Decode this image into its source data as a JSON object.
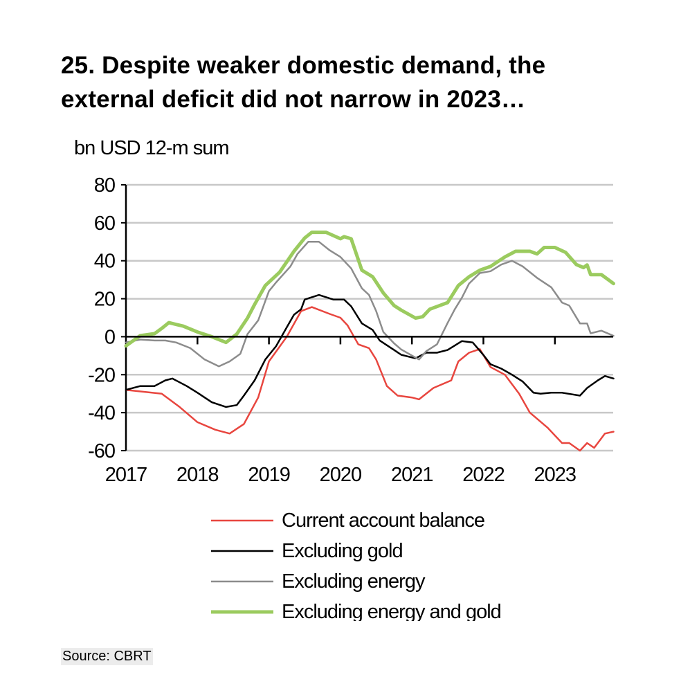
{
  "chart_data": {
    "type": "line",
    "title_lines": [
      "25. Despite weaker domestic demand, the",
      "external deficit did not narrow in 2023…"
    ],
    "ylabel": "bn USD 12-m sum",
    "xlabel": "",
    "ylim": [
      -60,
      80
    ],
    "yticks": [
      80,
      60,
      40,
      20,
      0,
      -20,
      -40,
      -60
    ],
    "ytick_labels": [
      "80",
      "60",
      "40",
      "20",
      "0",
      "-20",
      "-40",
      "-60"
    ],
    "xlim": [
      2017.0,
      2023.82
    ],
    "xticks": [
      2017,
      2018,
      2019,
      2020,
      2021,
      2022,
      2023
    ],
    "xtick_labels": [
      "2017",
      "2018",
      "2019",
      "2020",
      "2021",
      "2022",
      "2023"
    ],
    "grid": true,
    "legend_position": "bottom",
    "series": [
      {
        "name": "Current account balance",
        "color": "#e8463f",
        "width": 2.5,
        "x": [
          2017.0,
          2017.25,
          2017.5,
          2017.75,
          2018.0,
          2018.25,
          2018.45,
          2018.65,
          2018.85,
          2019.0,
          2019.25,
          2019.45,
          2019.6,
          2019.85,
          2020.0,
          2020.1,
          2020.25,
          2020.4,
          2020.5,
          2020.65,
          2020.8,
          2021.0,
          2021.1,
          2021.3,
          2021.55,
          2021.65,
          2021.8,
          2021.95,
          2022.1,
          2022.3,
          2022.5,
          2022.65,
          2022.9,
          2023.1,
          2023.2,
          2023.35,
          2023.45,
          2023.55,
          2023.7,
          2023.82
        ],
        "y": [
          -28,
          -29,
          -30,
          -37,
          -45,
          -49,
          -51,
          -46,
          -32,
          -13,
          0,
          13.5,
          15.6,
          12,
          10,
          6,
          -4,
          -6,
          -12,
          -26,
          -31,
          -32,
          -33,
          -27,
          -23,
          -13,
          -8.4,
          -6.5,
          -16,
          -20,
          -30,
          -40,
          -48,
          -56,
          -56,
          -60,
          -56,
          -58.5,
          -51,
          -50
        ]
      },
      {
        "name": "Excluding gold",
        "color": "#000000",
        "width": 2.5,
        "x": [
          2017.0,
          2017.2,
          2017.4,
          2017.55,
          2017.65,
          2017.85,
          2018.0,
          2018.2,
          2018.4,
          2018.55,
          2018.65,
          2018.8,
          2018.95,
          2019.1,
          2019.25,
          2019.35,
          2019.45,
          2019.5,
          2019.7,
          2019.9,
          2020.05,
          2020.15,
          2020.3,
          2020.45,
          2020.55,
          2020.75,
          2020.85,
          2021.05,
          2021.2,
          2021.35,
          2021.5,
          2021.7,
          2021.85,
          2022.0,
          2022.1,
          2022.25,
          2022.4,
          2022.55,
          2022.7,
          2022.8,
          2022.95,
          2023.1,
          2023.35,
          2023.45,
          2023.6,
          2023.7,
          2023.82
        ],
        "y": [
          -28,
          -26,
          -26,
          -23,
          -22,
          -26,
          -29.5,
          -34.5,
          -37,
          -36,
          -31,
          -23,
          -12,
          -5,
          5,
          11.6,
          14.5,
          19.6,
          22,
          19.6,
          19.6,
          16,
          7,
          3.6,
          -2,
          -7,
          -9.5,
          -11.4,
          -8.4,
          -8.4,
          -7,
          -2.3,
          -3,
          -9.6,
          -14.5,
          -16.8,
          -20,
          -23.6,
          -29.5,
          -30,
          -29.5,
          -29.5,
          -31,
          -27,
          -23,
          -20.7,
          -22
        ]
      },
      {
        "name": "Excluding energy",
        "color": "#8c8c8c",
        "width": 2.5,
        "x": [
          2017.0,
          2017.2,
          2017.4,
          2017.55,
          2017.7,
          2017.9,
          2018.1,
          2018.3,
          2018.45,
          2018.6,
          2018.7,
          2018.85,
          2019.0,
          2019.1,
          2019.3,
          2019.4,
          2019.55,
          2019.7,
          2019.85,
          2020.0,
          2020.15,
          2020.3,
          2020.4,
          2020.5,
          2020.6,
          2020.75,
          2020.85,
          2021.05,
          2021.1,
          2021.2,
          2021.35,
          2021.5,
          2021.6,
          2021.7,
          2021.8,
          2021.95,
          2022.1,
          2022.25,
          2022.4,
          2022.55,
          2022.75,
          2022.95,
          2023.1,
          2023.2,
          2023.35,
          2023.45,
          2023.5,
          2023.65,
          2023.82
        ],
        "y": [
          -3,
          -1.5,
          -2,
          -2,
          -3,
          -6,
          -12,
          -15.6,
          -13,
          -9,
          1.4,
          8.6,
          24,
          28.6,
          37,
          43.6,
          50,
          50,
          45.5,
          42,
          36,
          25.5,
          22,
          13.5,
          2.5,
          -3.5,
          -6.7,
          -11,
          -12,
          -7.6,
          -4,
          7.3,
          14.5,
          20.6,
          28,
          33.5,
          34.5,
          38,
          40,
          37,
          31,
          26,
          18,
          16.4,
          7,
          7,
          1.8,
          3.2,
          0.5
        ]
      },
      {
        "name": "Excluding energy and gold",
        "color": "#9bcb5f",
        "width": 5,
        "x": [
          2017.0,
          2017.2,
          2017.4,
          2017.5,
          2017.6,
          2017.8,
          2018.0,
          2018.2,
          2018.4,
          2018.55,
          2018.7,
          2018.8,
          2018.95,
          2019.15,
          2019.35,
          2019.5,
          2019.6,
          2019.8,
          2020.0,
          2020.05,
          2020.15,
          2020.3,
          2020.45,
          2020.6,
          2020.75,
          2020.85,
          2021.05,
          2021.15,
          2021.25,
          2021.5,
          2021.65,
          2021.8,
          2021.95,
          2022.1,
          2022.3,
          2022.45,
          2022.65,
          2022.75,
          2022.85,
          2023.0,
          2023.15,
          2023.3,
          2023.4,
          2023.45,
          2023.5,
          2023.65,
          2023.82
        ],
        "y": [
          -4.8,
          0.6,
          1.6,
          4.4,
          7.4,
          5.6,
          2.5,
          0,
          -3,
          1.4,
          9.8,
          17,
          27,
          34,
          45,
          52,
          55,
          55,
          51.6,
          52.7,
          51.6,
          35,
          31.6,
          23,
          16.4,
          14,
          9.8,
          10.5,
          14.5,
          18,
          27,
          31.6,
          35,
          37,
          42,
          45,
          45,
          43.6,
          47,
          47,
          44.4,
          38,
          36.4,
          37.8,
          32.7,
          32.7,
          28
        ]
      }
    ]
  },
  "source": "Source: CBRT"
}
